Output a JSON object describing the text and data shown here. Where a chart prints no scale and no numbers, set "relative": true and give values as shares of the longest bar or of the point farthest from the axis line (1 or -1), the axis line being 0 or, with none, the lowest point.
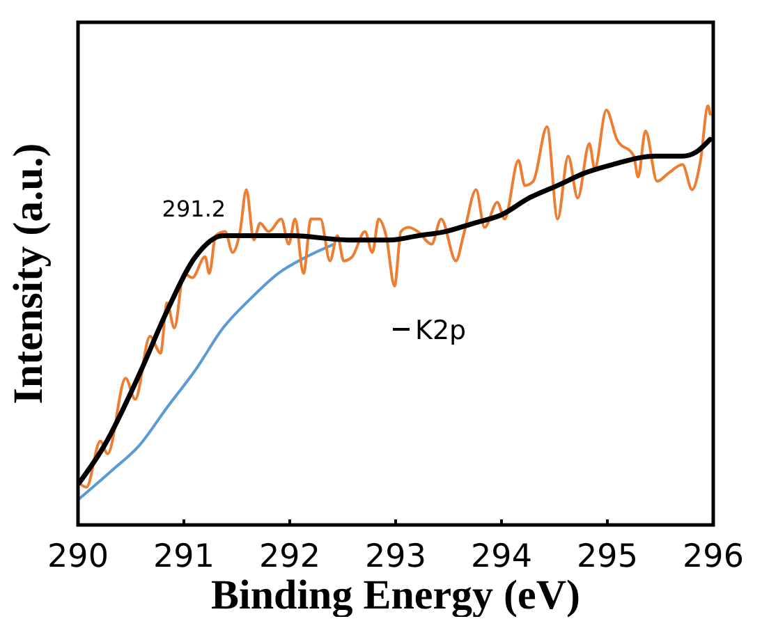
{
  "chart_data": {
    "type": "line",
    "xlabel": "Binding Energy (eV)",
    "ylabel": "Intensity (a.u.)",
    "relative": true,
    "xlim": [
      290,
      296
    ],
    "xticks": [
      290,
      291,
      292,
      293,
      294,
      295,
      296
    ],
    "grid": false,
    "legend": "center",
    "line_style": "solid",
    "annotations": [
      {
        "text": "291.2",
        "x": 291.2,
        "y": 0.69
      }
    ],
    "series": [
      {
        "color": "#5b9bd5",
        "x": [
          290,
          290.32,
          290.58,
          290.84,
          291.11,
          291.37,
          291.63,
          291.89,
          292.16,
          292.42
        ],
        "values": [
          0.06,
          0.13,
          0.19,
          0.28,
          0.37,
          0.47,
          0.54,
          0.6,
          0.64,
          0.67
        ]
      },
      {
        "color": "#ed7d31",
        "x": [
          290.01,
          290.08,
          290.21,
          290.28,
          290.45,
          290.54,
          290.68,
          290.78,
          290.84,
          290.91,
          291.0,
          291.08,
          291.2,
          291.24,
          291.3,
          291.39,
          291.46,
          291.53,
          291.59,
          291.66,
          291.72,
          291.8,
          291.92,
          291.99,
          292.05,
          292.13,
          292.2,
          292.29,
          292.38,
          292.45,
          292.51,
          292.59,
          292.71,
          292.78,
          292.84,
          292.91,
          292.99,
          293.05,
          293.12,
          293.21,
          293.34,
          293.43,
          293.57,
          293.64,
          293.76,
          293.84,
          293.96,
          294.03,
          294.16,
          294.22,
          294.3,
          294.43,
          294.53,
          294.63,
          294.72,
          294.83,
          294.88,
          294.99,
          295.09,
          295.25,
          295.29,
          295.36,
          295.47,
          295.58,
          295.71,
          295.8,
          295.88,
          295.95,
          295.97
        ],
        "values": [
          0.1,
          0.09,
          0.2,
          0.17,
          0.35,
          0.3,
          0.45,
          0.41,
          0.53,
          0.47,
          0.6,
          0.59,
          0.64,
          0.6,
          0.69,
          0.7,
          0.65,
          0.7,
          0.8,
          0.68,
          0.72,
          0.7,
          0.73,
          0.67,
          0.73,
          0.6,
          0.73,
          0.73,
          0.63,
          0.69,
          0.63,
          0.64,
          0.7,
          0.65,
          0.73,
          0.69,
          0.57,
          0.7,
          0.71,
          0.7,
          0.67,
          0.73,
          0.63,
          0.69,
          0.8,
          0.71,
          0.77,
          0.73,
          0.87,
          0.81,
          0.82,
          0.95,
          0.73,
          0.88,
          0.78,
          0.91,
          0.85,
          0.99,
          0.92,
          0.88,
          0.83,
          0.94,
          0.82,
          0.84,
          0.86,
          0.8,
          0.87,
          1,
          0.98
        ]
      },
      {
        "name": "K2p",
        "color": "#000000",
        "x": [
          290.01,
          290.25,
          290.58,
          290.84,
          291.11,
          291.37,
          291.63,
          292.03,
          292.55,
          292.95,
          293.21,
          293.47,
          293.74,
          294.0,
          294.26,
          294.53,
          294.79,
          295.05,
          295.45,
          295.71,
          295.84,
          295.97
        ],
        "values": [
          0.1,
          0.19,
          0.36,
          0.51,
          0.64,
          0.69,
          0.69,
          0.69,
          0.68,
          0.68,
          0.69,
          0.7,
          0.72,
          0.74,
          0.78,
          0.81,
          0.84,
          0.86,
          0.88,
          0.88,
          0.89,
          0.92
        ]
      }
    ]
  }
}
